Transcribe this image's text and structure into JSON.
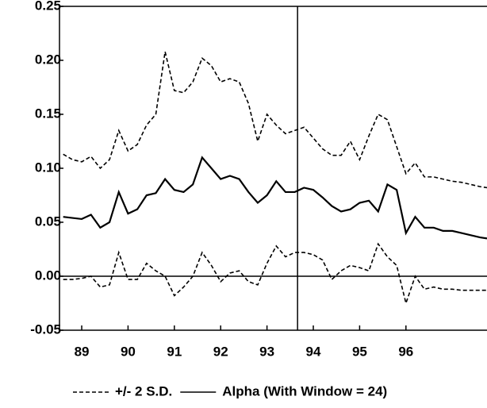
{
  "chart_data": {
    "type": "line",
    "x": [
      88.6,
      88.8,
      89.0,
      89.2,
      89.4,
      89.6,
      89.8,
      90.0,
      90.2,
      90.4,
      90.6,
      90.8,
      91.0,
      91.2,
      91.4,
      91.6,
      91.8,
      92.0,
      92.2,
      92.4,
      92.6,
      92.8,
      93.0,
      93.2,
      93.4,
      93.6,
      93.8,
      94.0,
      94.2,
      94.4,
      94.6,
      94.8,
      95.0,
      95.2,
      95.4,
      95.6,
      95.8,
      96.0,
      96.2,
      96.4,
      96.6,
      96.8,
      97.0,
      97.2,
      97.4,
      97.6,
      97.75
    ],
    "series": [
      {
        "name": "+/- 2 S.D.",
        "color": "#000000",
        "style": "dashed",
        "values": [
          0.113,
          0.108,
          0.106,
          0.111,
          0.1,
          0.108,
          0.135,
          0.116,
          0.122,
          0.14,
          0.15,
          0.208,
          0.172,
          0.17,
          0.18,
          0.202,
          0.195,
          0.18,
          0.183,
          0.18,
          0.16,
          0.125,
          0.15,
          0.14,
          0.132,
          0.135,
          0.138,
          0.128,
          0.118,
          0.112,
          0.112,
          0.125,
          0.108,
          0.13,
          0.15,
          0.145,
          0.12,
          0.095,
          0.105,
          0.092,
          0.092,
          0.09,
          0.088,
          0.087,
          0.085,
          0.083,
          0.082
        ],
        "lower": [
          -0.003,
          -0.003,
          -0.002,
          0.0,
          -0.01,
          -0.008,
          0.022,
          -0.003,
          -0.003,
          0.012,
          0.005,
          0.0,
          -0.018,
          -0.01,
          0.0,
          0.022,
          0.01,
          -0.005,
          0.003,
          0.005,
          -0.005,
          -0.008,
          0.012,
          0.028,
          0.018,
          0.022,
          0.022,
          0.02,
          0.015,
          -0.003,
          0.005,
          0.01,
          0.008,
          0.005,
          0.03,
          0.018,
          0.01,
          -0.025,
          0.0,
          -0.012,
          -0.01,
          -0.012,
          -0.012,
          -0.013,
          -0.013,
          -0.013,
          -0.013
        ]
      },
      {
        "name": "Alpha (With Window = 24)",
        "color": "#000000",
        "style": "solid",
        "values": [
          0.055,
          0.054,
          0.053,
          0.057,
          0.045,
          0.05,
          0.078,
          0.058,
          0.062,
          0.075,
          0.077,
          0.09,
          0.08,
          0.078,
          0.085,
          0.11,
          0.1,
          0.09,
          0.093,
          0.09,
          0.078,
          0.068,
          0.075,
          0.088,
          0.078,
          0.078,
          0.082,
          0.08,
          0.073,
          0.065,
          0.06,
          0.062,
          0.068,
          0.07,
          0.06,
          0.085,
          0.08,
          0.04,
          0.055,
          0.045,
          0.045,
          0.042,
          0.042,
          0.04,
          0.038,
          0.036,
          0.035
        ]
      }
    ],
    "vline": 93.66,
    "xlim": [
      88.52,
      97.75
    ],
    "xticks": [
      89,
      90,
      91,
      92,
      93,
      94,
      95,
      96
    ],
    "ylim": [
      -0.05,
      0.25
    ],
    "yticks": [
      {
        "value": -0.05,
        "label": "-0.05"
      },
      {
        "value": 0,
        "label": "0.00"
      },
      {
        "value": 0.05,
        "label": "0.05"
      },
      {
        "value": 0.1,
        "label": "0.10"
      },
      {
        "value": 0.15,
        "label": "0.15"
      },
      {
        "value": 0.2,
        "label": "0.20"
      },
      {
        "value": 0.25,
        "label": "0.25"
      }
    ],
    "grid": false
  }
}
